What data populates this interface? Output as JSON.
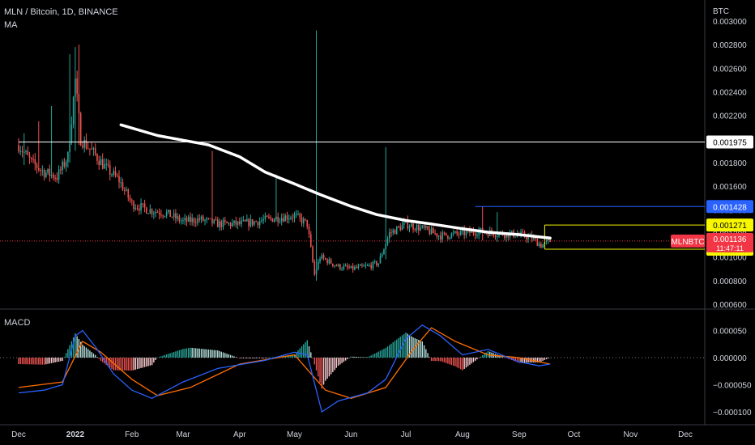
{
  "header": {
    "symbol_line": "MLN / Bitcoin, 1D, BINANCE",
    "indicator": "MA",
    "unit": "BTC"
  },
  "macd_label": "MACD",
  "colors": {
    "background": "#000000",
    "up": "#26a69a",
    "down": "#ef5350",
    "ma": "#ffffff",
    "macd_line": "#2962ff",
    "signal_line": "#ff6d00",
    "white_level": "#ffffff",
    "blue_level": "#2962ff",
    "yellow_level": "#f7f700",
    "current_price": "#f23645"
  },
  "chart_data": [
    {
      "type": "line",
      "title": "",
      "x_axis": {
        "start": "2021-12-01",
        "end": "2023-01-01",
        "ticks": [
          {
            "date": "2021-12-01",
            "label": "Dec"
          },
          {
            "date": "2022-01-01",
            "label": "2022"
          },
          {
            "date": "2022-02-01",
            "label": "Feb"
          },
          {
            "date": "2022-03-01",
            "label": "Mar"
          },
          {
            "date": "2022-04-01",
            "label": "Apr"
          },
          {
            "date": "2022-05-01",
            "label": "May"
          },
          {
            "date": "2022-06-01",
            "label": "Jun"
          },
          {
            "date": "2022-07-01",
            "label": "Jul"
          },
          {
            "date": "2022-08-01",
            "label": "Aug"
          },
          {
            "date": "2022-09-01",
            "label": "Sep"
          },
          {
            "date": "2022-10-01",
            "label": "Oct"
          },
          {
            "date": "2022-11-01",
            "label": "Nov"
          },
          {
            "date": "2022-12-01",
            "label": "Dec"
          }
        ]
      },
      "y_axis": {
        "range": [
          0.00058,
          0.00302
        ],
        "ticks": [
          "0.000600",
          "0.000800",
          "0.001000",
          "0.001200",
          "0.001400",
          "0.001600",
          "0.001800",
          "0.002000",
          "0.002200",
          "0.002400",
          "0.002600",
          "0.002800",
          "0.003000"
        ]
      },
      "price_path": [
        {
          "x": "2021-12-01",
          "y": 0.00195
        },
        {
          "x": "2021-12-08",
          "y": 0.0018
        },
        {
          "x": "2021-12-15",
          "y": 0.00172
        },
        {
          "x": "2021-12-22",
          "y": 0.00168
        },
        {
          "x": "2021-12-28",
          "y": 0.00185
        },
        {
          "x": "2022-01-01",
          "y": 0.0025
        },
        {
          "x": "2022-01-04",
          "y": 0.002
        },
        {
          "x": "2022-01-10",
          "y": 0.0019
        },
        {
          "x": "2022-01-18",
          "y": 0.00175
        },
        {
          "x": "2022-01-25",
          "y": 0.00165
        },
        {
          "x": "2022-02-01",
          "y": 0.00145
        },
        {
          "x": "2022-02-10",
          "y": 0.0014
        },
        {
          "x": "2022-02-20",
          "y": 0.00137
        },
        {
          "x": "2022-03-01",
          "y": 0.0013
        },
        {
          "x": "2022-03-10",
          "y": 0.00132
        },
        {
          "x": "2022-03-20",
          "y": 0.00128
        },
        {
          "x": "2022-04-01",
          "y": 0.00128
        },
        {
          "x": "2022-04-10",
          "y": 0.0013
        },
        {
          "x": "2022-04-20",
          "y": 0.00133
        },
        {
          "x": "2022-05-01",
          "y": 0.00135
        },
        {
          "x": "2022-05-08",
          "y": 0.00128
        },
        {
          "x": "2022-05-12",
          "y": 0.00085
        },
        {
          "x": "2022-05-15",
          "y": 0.001
        },
        {
          "x": "2022-05-25",
          "y": 0.00092
        },
        {
          "x": "2022-06-01",
          "y": 0.0009
        },
        {
          "x": "2022-06-10",
          "y": 0.00092
        },
        {
          "x": "2022-06-16",
          "y": 0.00095
        },
        {
          "x": "2022-06-22",
          "y": 0.0012
        },
        {
          "x": "2022-07-01",
          "y": 0.00128
        },
        {
          "x": "2022-07-10",
          "y": 0.00124
        },
        {
          "x": "2022-07-20",
          "y": 0.00118
        },
        {
          "x": "2022-08-01",
          "y": 0.0012
        },
        {
          "x": "2022-08-10",
          "y": 0.00122
        },
        {
          "x": "2022-08-20",
          "y": 0.0012
        },
        {
          "x": "2022-09-01",
          "y": 0.00119
        },
        {
          "x": "2022-09-08",
          "y": 0.00116
        },
        {
          "x": "2022-09-13",
          "y": 0.0011
        },
        {
          "x": "2022-09-18",
          "y": 0.001136
        }
      ],
      "spikes": [
        {
          "x": "2021-12-04",
          "high": 0.00205,
          "low": 0.00178
        },
        {
          "x": "2021-12-12",
          "high": 0.00215,
          "low": 0.00172
        },
        {
          "x": "2021-12-19",
          "high": 0.00228,
          "low": 0.00168
        },
        {
          "x": "2021-12-29",
          "high": 0.00272,
          "low": 0.0018
        },
        {
          "x": "2022-01-01",
          "high": 0.00278,
          "low": 0.0019
        },
        {
          "x": "2022-01-03",
          "high": 0.0028,
          "low": 0.00195
        },
        {
          "x": "2022-03-17",
          "high": 0.0019,
          "low": 0.00128
        },
        {
          "x": "2022-04-21",
          "high": 0.0017,
          "low": 0.0013
        },
        {
          "x": "2022-05-13",
          "high": 0.00292,
          "low": 0.0008
        },
        {
          "x": "2022-06-20",
          "high": 0.00193,
          "low": 0.00098
        },
        {
          "x": "2022-08-12",
          "high": 0.00143,
          "low": 0.00114
        },
        {
          "x": "2022-08-20",
          "high": 0.00138,
          "low": 0.00113
        }
      ],
      "ma_path": [
        {
          "x": "2022-01-26",
          "y": 0.00212
        },
        {
          "x": "2022-02-15",
          "y": 0.00203
        },
        {
          "x": "2022-03-01",
          "y": 0.00199
        },
        {
          "x": "2022-03-15",
          "y": 0.00195
        },
        {
          "x": "2022-04-01",
          "y": 0.00185
        },
        {
          "x": "2022-04-15",
          "y": 0.00172
        },
        {
          "x": "2022-05-01",
          "y": 0.00162
        },
        {
          "x": "2022-05-15",
          "y": 0.00153
        },
        {
          "x": "2022-06-01",
          "y": 0.00143
        },
        {
          "x": "2022-06-15",
          "y": 0.00136
        },
        {
          "x": "2022-07-01",
          "y": 0.00131
        },
        {
          "x": "2022-07-15",
          "y": 0.00128
        },
        {
          "x": "2022-08-01",
          "y": 0.00124
        },
        {
          "x": "2022-08-15",
          "y": 0.00121
        },
        {
          "x": "2022-09-01",
          "y": 0.00119
        },
        {
          "x": "2022-09-18",
          "y": 0.00116
        }
      ],
      "levels": [
        {
          "value": 0.001975,
          "label": "0.001975",
          "from": "2021-12-01",
          "to": "2022-12-31",
          "style": "white"
        },
        {
          "value": 0.001428,
          "label": "0.001428",
          "from": "2022-08-08",
          "to": "2022-12-31",
          "style": "blue"
        },
        {
          "value": 0.001271,
          "label": "0.001271",
          "from": "2022-09-15",
          "to": "2022-12-31",
          "style": "yellow"
        },
        {
          "value": 0.001066,
          "label": "0.001066",
          "from": "2022-09-15",
          "to": "2022-12-31",
          "style": "yellow"
        }
      ],
      "current": {
        "symbol": "MLNBTC",
        "value": "0.001136",
        "countdown": "11:47:11",
        "y": 0.001136
      }
    },
    {
      "type": "bar",
      "title": "MACD",
      "y_axis": {
        "range": [
          -0.000115,
          8.5e-05
        ],
        "ticks": [
          "0.000050",
          "0.000000",
          "−0.000050",
          "−0.000100"
        ]
      },
      "macd_line": [
        {
          "x": "2021-12-01",
          "y": -6.5e-05
        },
        {
          "x": "2021-12-15",
          "y": -6e-05
        },
        {
          "x": "2021-12-25",
          "y": -5e-05
        },
        {
          "x": "2022-01-01",
          "y": 4e-05
        },
        {
          "x": "2022-01-05",
          "y": 5e-05
        },
        {
          "x": "2022-01-12",
          "y": 2e-05
        },
        {
          "x": "2022-01-22",
          "y": -3e-05
        },
        {
          "x": "2022-02-01",
          "y": -6e-05
        },
        {
          "x": "2022-02-12",
          "y": -7.5e-05
        },
        {
          "x": "2022-03-01",
          "y": -4.5e-05
        },
        {
          "x": "2022-03-20",
          "y": -2e-05
        },
        {
          "x": "2022-04-15",
          "y": -5e-06
        },
        {
          "x": "2022-05-01",
          "y": 1e-05
        },
        {
          "x": "2022-05-08",
          "y": 5e-06
        },
        {
          "x": "2022-05-16",
          "y": -0.0001
        },
        {
          "x": "2022-05-25",
          "y": -8e-05
        },
        {
          "x": "2022-06-10",
          "y": -6.5e-05
        },
        {
          "x": "2022-06-20",
          "y": -4e-05
        },
        {
          "x": "2022-07-01",
          "y": 3.5e-05
        },
        {
          "x": "2022-07-10",
          "y": 6e-05
        },
        {
          "x": "2022-07-20",
          "y": 4e-05
        },
        {
          "x": "2022-08-01",
          "y": 5e-06
        },
        {
          "x": "2022-08-15",
          "y": 1.5e-05
        },
        {
          "x": "2022-09-01",
          "y": -8e-06
        },
        {
          "x": "2022-09-12",
          "y": -1.5e-05
        },
        {
          "x": "2022-09-18",
          "y": -1.2e-05
        }
      ],
      "signal_line": [
        {
          "x": "2021-12-01",
          "y": -5.5e-05
        },
        {
          "x": "2021-12-25",
          "y": -4.5e-05
        },
        {
          "x": "2022-01-05",
          "y": 3e-05
        },
        {
          "x": "2022-01-15",
          "y": 1e-05
        },
        {
          "x": "2022-02-01",
          "y": -4e-05
        },
        {
          "x": "2022-02-15",
          "y": -7e-05
        },
        {
          "x": "2022-03-05",
          "y": -5.5e-05
        },
        {
          "x": "2022-04-01",
          "y": -1.2e-05
        },
        {
          "x": "2022-05-01",
          "y": 5e-06
        },
        {
          "x": "2022-05-18",
          "y": -6e-05
        },
        {
          "x": "2022-06-01",
          "y": -7.5e-05
        },
        {
          "x": "2022-06-20",
          "y": -5.5e-05
        },
        {
          "x": "2022-07-05",
          "y": 1.5e-05
        },
        {
          "x": "2022-07-15",
          "y": 5.5e-05
        },
        {
          "x": "2022-07-28",
          "y": 3e-05
        },
        {
          "x": "2022-08-15",
          "y": 5e-06
        },
        {
          "x": "2022-09-01",
          "y": 0.0
        },
        {
          "x": "2022-09-18",
          "y": -1.2e-05
        }
      ]
    }
  ]
}
